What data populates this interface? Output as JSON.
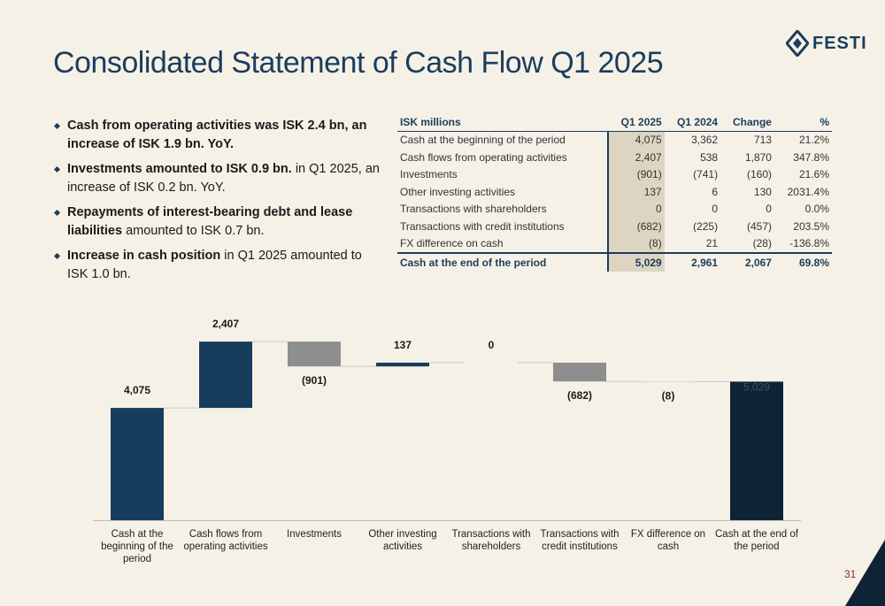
{
  "header": {
    "title": "Consolidated Statement of Cash Flow Q1 2025",
    "logo": "FESTI"
  },
  "bullets": [
    {
      "bold": "Cash from operating activities was ISK 2.4 bn, an increase of ISK 1.9 bn. YoY."
    },
    {
      "bold": "Investments amounted to ISK 0.9 bn.",
      "rest": " in Q1 2025, an increase of ISK 0.2 bn. YoY."
    },
    {
      "bold": "Repayments of interest-bearing debt  and lease liabilities",
      "rest": " amounted to ISK 0.7 bn."
    },
    {
      "bold": "Increase in cash position",
      "rest": " in Q1 2025 amounted to ISK 1.0 bn."
    }
  ],
  "table": {
    "header": [
      "ISK millions",
      "Q1 2025",
      "Q1 2024",
      "Change",
      "%"
    ],
    "rows": [
      [
        "Cash at the beginning of the period",
        "4,075",
        "3,362",
        "713",
        "21.2%"
      ],
      [
        "Cash flows from operating activities",
        "2,407",
        "538",
        "1,870",
        "347.8%"
      ],
      [
        "Investments",
        "(901)",
        "(741)",
        "(160)",
        "21.6%"
      ],
      [
        "Other investing activities",
        "137",
        "6",
        "130",
        "2031.4%"
      ],
      [
        "Transactions with shareholders",
        "0",
        "0",
        "0",
        "0.0%"
      ],
      [
        "Transactions with credit institutions",
        "(682)",
        "(225)",
        "(457)",
        "203.5%"
      ],
      [
        "FX difference on cash",
        "(8)",
        "21",
        "(28)",
        "-136.8%"
      ],
      [
        "Cash at the end of the period",
        "5,029",
        "2,961",
        "2,067",
        "69.8%"
      ]
    ]
  },
  "chart_data": {
    "type": "waterfall",
    "categories": [
      "Cash at the beginning of the period",
      "Cash flows from operating activities",
      "Investments",
      "Other investing activities",
      "Transactions with shareholders",
      "Transactions with credit institutions",
      "FX difference on cash",
      "Cash at the end of the period"
    ],
    "values": [
      4075,
      2407,
      -901,
      137,
      0,
      -682,
      -8,
      5029
    ],
    "value_labels": [
      "4,075",
      "2,407",
      "(901)",
      "137",
      "0",
      "(682)",
      "(8)",
      "5,029"
    ],
    "measures": [
      "absolute",
      "relative",
      "relative",
      "relative",
      "relative",
      "relative",
      "relative",
      "total"
    ],
    "colors": [
      "#163c5e",
      "#163c5e",
      "#8e8e8e",
      "#163c5e",
      "#163c5e",
      "#8e8e8e",
      "#8e8e8e",
      "#0e2436"
    ],
    "ylim": [
      0,
      7000
    ]
  },
  "page_number": "31"
}
